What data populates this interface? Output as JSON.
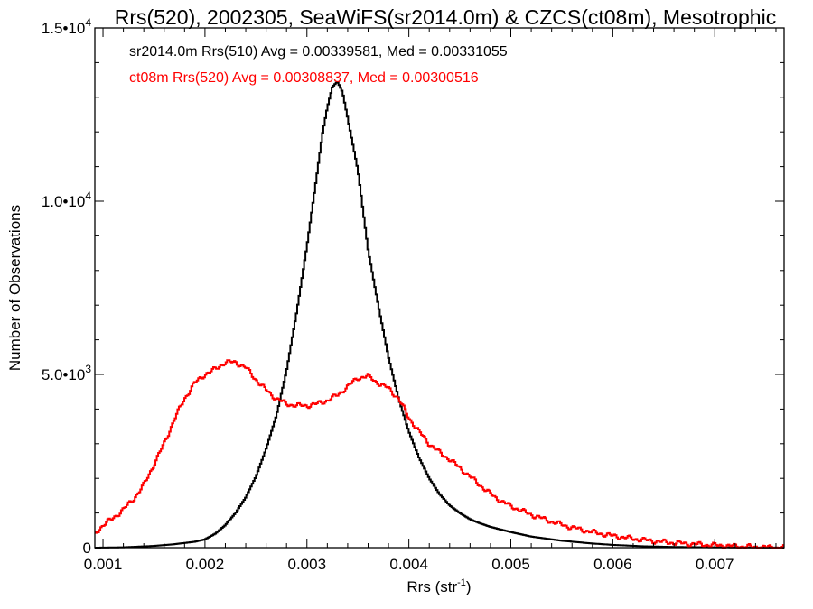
{
  "chart_data": {
    "type": "histogram",
    "title": "Rrs(520), 2002305, SeaWiFS(sr2014.0m) & CZCS(ct08m), Mesotrophic",
    "xlabel": "Rrs (str",
    "xlabel_sup": "-1",
    "xlabel_close": ")",
    "ylabel": "Number of Observations",
    "xlim": [
      0.00092,
      0.00768
    ],
    "ylim": [
      0,
      15000
    ],
    "xticks": [
      {
        "value": 0.001,
        "label": "0.001"
      },
      {
        "value": 0.002,
        "label": "0.002"
      },
      {
        "value": 0.003,
        "label": "0.003"
      },
      {
        "value": 0.004,
        "label": "0.004"
      },
      {
        "value": 0.005,
        "label": "0.005"
      },
      {
        "value": 0.006,
        "label": "0.006"
      },
      {
        "value": 0.007,
        "label": "0.007"
      }
    ],
    "yticks": [
      {
        "value": 0,
        "base": "0",
        "exp": ""
      },
      {
        "value": 5000,
        "base": "5.0•10",
        "exp": "3"
      },
      {
        "value": 10000,
        "base": "1.0•10",
        "exp": "4"
      },
      {
        "value": 15000,
        "base": "1.5•10",
        "exp": "4"
      }
    ],
    "grid": false,
    "series": [
      {
        "name": "sr2014.0m Rrs(510)",
        "annotation": "sr2014.0m Rrs(510) Avg = 0.00339581, Med = 0.00331055",
        "color": "#000000",
        "x": [
          0.00092,
          0.0012,
          0.0015,
          0.0017,
          0.0019,
          0.002,
          0.0021,
          0.0022,
          0.0023,
          0.0024,
          0.0025,
          0.0026,
          0.0027,
          0.0028,
          0.0029,
          0.003,
          0.0031,
          0.00315,
          0.0032,
          0.00325,
          0.0033,
          0.00335,
          0.0034,
          0.0035,
          0.0036,
          0.0037,
          0.0038,
          0.0039,
          0.004,
          0.0041,
          0.0042,
          0.0043,
          0.0044,
          0.0045,
          0.0046,
          0.0047,
          0.0048,
          0.005,
          0.0052,
          0.0055,
          0.0058,
          0.006,
          0.0063,
          0.0066,
          0.007,
          0.0074,
          0.00768
        ],
        "values": [
          0,
          10,
          50,
          100,
          170,
          240,
          400,
          650,
          1000,
          1450,
          2050,
          2850,
          3800,
          5100,
          6800,
          8700,
          10800,
          11900,
          12700,
          13300,
          13450,
          13150,
          12400,
          10900,
          8600,
          7000,
          5500,
          4300,
          3350,
          2600,
          2000,
          1550,
          1220,
          1000,
          820,
          700,
          600,
          450,
          320,
          200,
          120,
          80,
          40,
          20,
          10,
          5,
          0
        ]
      },
      {
        "name": "ct08m Rrs(520)",
        "annotation": "ct08m Rrs(520) Avg = 0.00308837, Med = 0.00300516",
        "color": "#ff0000",
        "x": [
          0.00092,
          0.001,
          0.0011,
          0.0012,
          0.0013,
          0.0014,
          0.0015,
          0.0016,
          0.0017,
          0.0018,
          0.0019,
          0.002,
          0.0021,
          0.0022,
          0.0023,
          0.0024,
          0.0025,
          0.0026,
          0.0027,
          0.0028,
          0.0029,
          0.003,
          0.0031,
          0.0032,
          0.0033,
          0.0034,
          0.0035,
          0.0036,
          0.0037,
          0.0038,
          0.0039,
          0.004,
          0.0041,
          0.0042,
          0.0043,
          0.0044,
          0.0045,
          0.0046,
          0.0047,
          0.0048,
          0.0049,
          0.005,
          0.0052,
          0.0054,
          0.0056,
          0.0058,
          0.006,
          0.0062,
          0.0064,
          0.0066,
          0.0068,
          0.007,
          0.0072,
          0.0074,
          0.00768
        ],
        "values": [
          400,
          650,
          850,
          1100,
          1400,
          1800,
          2400,
          3000,
          3700,
          4300,
          4750,
          5000,
          5150,
          5350,
          5350,
          5200,
          4850,
          4550,
          4300,
          4150,
          4100,
          4100,
          4150,
          4250,
          4400,
          4650,
          4900,
          4950,
          4750,
          4600,
          4300,
          3750,
          3350,
          3000,
          2750,
          2550,
          2300,
          2050,
          1800,
          1550,
          1350,
          1200,
          950,
          750,
          580,
          450,
          340,
          260,
          190,
          140,
          100,
          70,
          40,
          20,
          0
        ]
      }
    ]
  }
}
